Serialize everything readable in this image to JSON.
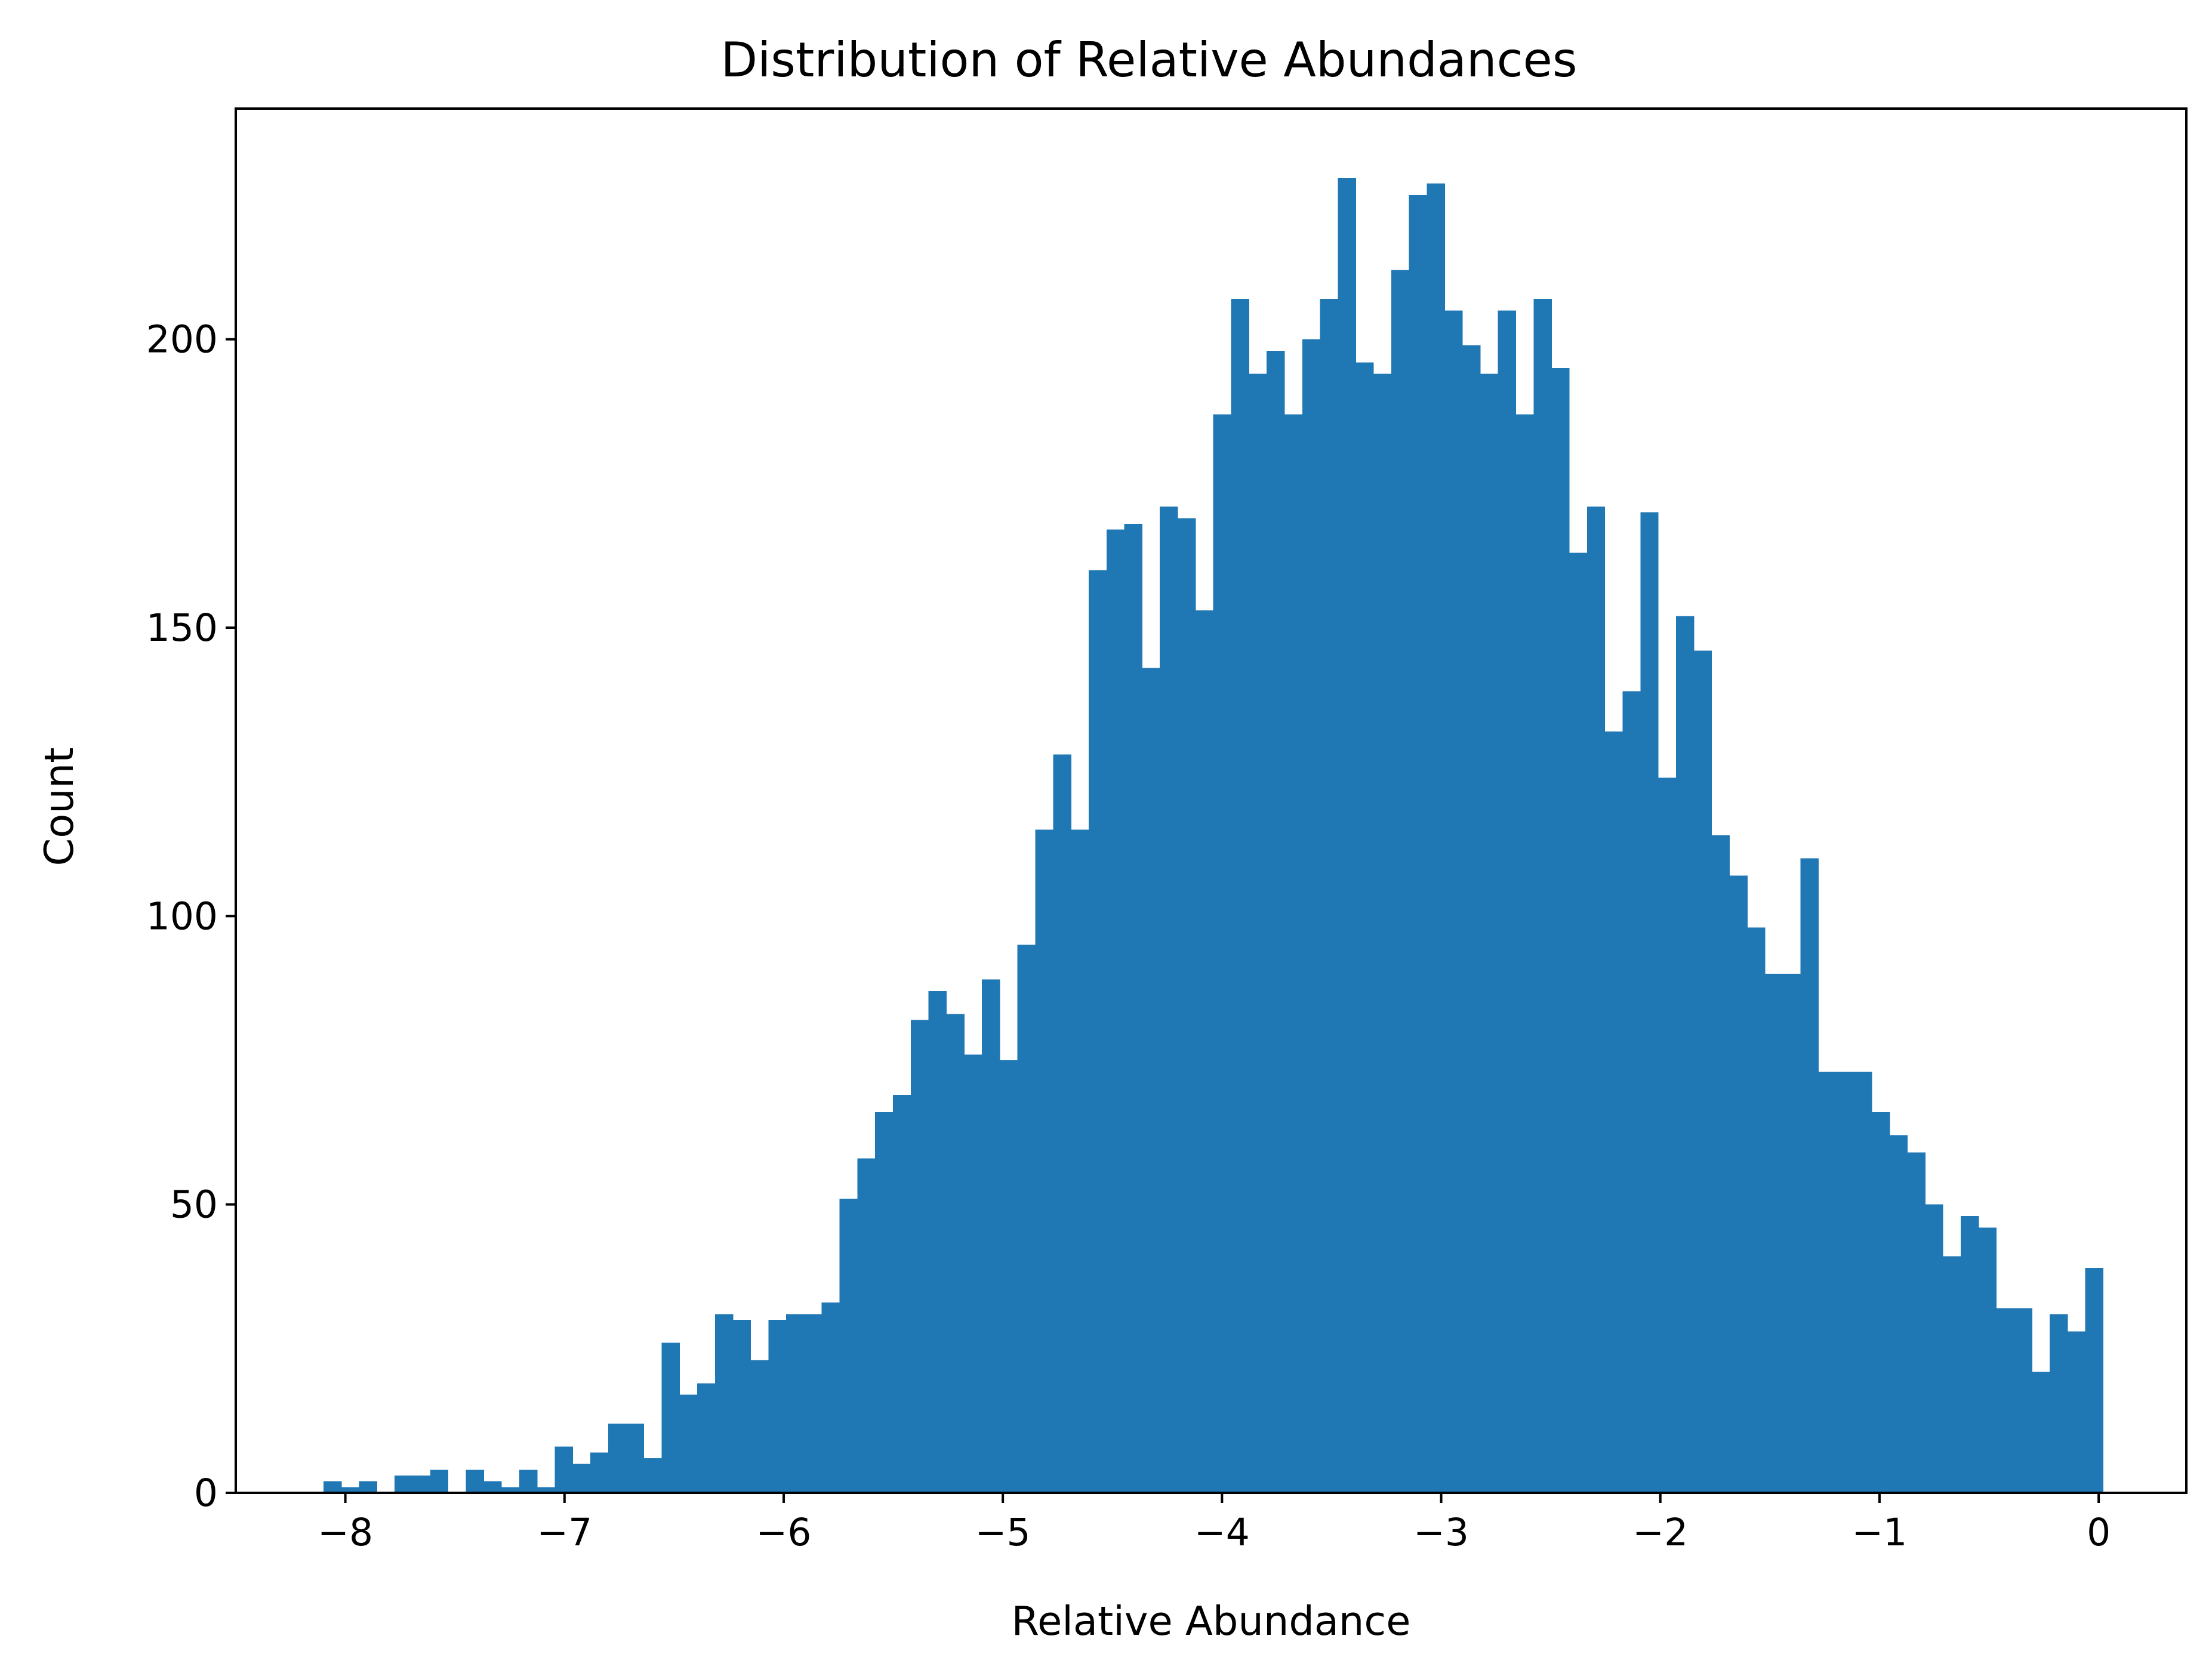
{
  "chart_data": {
    "type": "bar",
    "title": "Distribution of Relative Abundances",
    "xlabel": "Relative Abundance",
    "ylabel": "Count",
    "xlim": [
      -8.5,
      0.4
    ],
    "ylim": [
      0,
      240
    ],
    "x_ticks": [
      {
        "value": -8,
        "label": "−8"
      },
      {
        "value": -7,
        "label": "−7"
      },
      {
        "value": -6,
        "label": "−6"
      },
      {
        "value": -5,
        "label": "−5"
      },
      {
        "value": -4,
        "label": "−4"
      },
      {
        "value": -3,
        "label": "−3"
      },
      {
        "value": -2,
        "label": "−2"
      },
      {
        "value": -1,
        "label": "−1"
      },
      {
        "value": 0,
        "label": "0"
      }
    ],
    "y_ticks": [
      {
        "value": 0,
        "label": "0"
      },
      {
        "value": 50,
        "label": "50"
      },
      {
        "value": 100,
        "label": "100"
      },
      {
        "value": 150,
        "label": "150"
      },
      {
        "value": 200,
        "label": "200"
      }
    ],
    "bin_start": -8.1,
    "bin_width": 0.0812,
    "values": [
      2,
      1,
      2,
      0,
      3,
      3,
      4,
      0,
      4,
      2,
      1,
      4,
      1,
      8,
      5,
      7,
      12,
      12,
      6,
      26,
      17,
      19,
      31,
      30,
      23,
      30,
      31,
      31,
      33,
      51,
      58,
      66,
      69,
      82,
      87,
      83,
      76,
      89,
      75,
      95,
      115,
      128,
      115,
      160,
      167,
      168,
      143,
      171,
      169,
      153,
      187,
      207,
      194,
      198,
      187,
      200,
      207,
      228,
      196,
      194,
      212,
      225,
      227,
      205,
      199,
      194,
      205,
      187,
      207,
      195,
      163,
      171,
      132,
      139,
      170,
      124,
      152,
      146,
      114,
      107,
      98,
      90,
      90,
      110,
      73,
      73,
      73,
      66,
      62,
      59,
      50,
      41,
      48,
      46,
      32,
      32,
      21,
      31,
      28,
      39
    ],
    "color": "#1f77b4",
    "grid": false,
    "legend": "none"
  }
}
